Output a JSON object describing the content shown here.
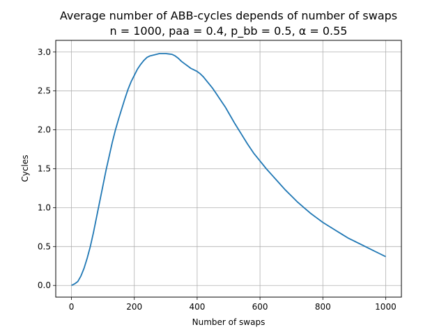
{
  "chart_data": {
    "type": "line",
    "title": "Average number of ABB-cycles depends of number of swaps",
    "subtitle": "n = 1000, paa = 0.4, p_bb = 0.5, α = 0.55",
    "xlabel": "Number of swaps",
    "ylabel": "Cycles",
    "xlim": [
      -50,
      1050
    ],
    "ylim": [
      -0.15,
      3.15
    ],
    "xticks": [
      0,
      200,
      400,
      600,
      800,
      1000
    ],
    "xtick_labels": [
      "0",
      "200",
      "400",
      "600",
      "800",
      "1000"
    ],
    "yticks": [
      0.0,
      0.5,
      1.0,
      1.5,
      2.0,
      2.5,
      3.0
    ],
    "ytick_labels": [
      "0.0",
      "0.5",
      "1.0",
      "1.5",
      "2.0",
      "2.5",
      "3.0"
    ],
    "grid": true,
    "line_color": "#1f77b4",
    "series": [
      {
        "x": [
          0,
          10,
          20,
          30,
          40,
          50,
          60,
          70,
          80,
          90,
          100,
          110,
          120,
          130,
          140,
          150,
          160,
          170,
          180,
          190,
          200,
          210,
          220,
          230,
          240,
          250,
          260,
          270,
          280,
          290,
          300,
          310,
          320,
          330,
          340,
          350,
          360,
          370,
          380,
          390,
          400,
          410,
          420,
          430,
          440,
          450,
          460,
          470,
          480,
          490,
          500,
          520,
          540,
          560,
          580,
          600,
          620,
          640,
          660,
          680,
          700,
          720,
          740,
          760,
          780,
          800,
          820,
          840,
          860,
          880,
          900,
          920,
          940,
          960,
          980,
          1000
        ],
        "y": [
          0.0,
          0.02,
          0.05,
          0.12,
          0.22,
          0.35,
          0.5,
          0.68,
          0.88,
          1.08,
          1.28,
          1.48,
          1.66,
          1.84,
          2.0,
          2.14,
          2.27,
          2.4,
          2.52,
          2.62,
          2.7,
          2.78,
          2.84,
          2.89,
          2.93,
          2.95,
          2.96,
          2.97,
          2.98,
          2.98,
          2.98,
          2.975,
          2.97,
          2.95,
          2.92,
          2.88,
          2.85,
          2.82,
          2.79,
          2.77,
          2.75,
          2.72,
          2.68,
          2.63,
          2.58,
          2.53,
          2.47,
          2.41,
          2.35,
          2.29,
          2.22,
          2.08,
          1.95,
          1.82,
          1.7,
          1.6,
          1.5,
          1.41,
          1.32,
          1.23,
          1.15,
          1.07,
          1.0,
          0.93,
          0.87,
          0.81,
          0.76,
          0.71,
          0.66,
          0.61,
          0.57,
          0.53,
          0.49,
          0.45,
          0.41,
          0.37
        ]
      }
    ]
  }
}
